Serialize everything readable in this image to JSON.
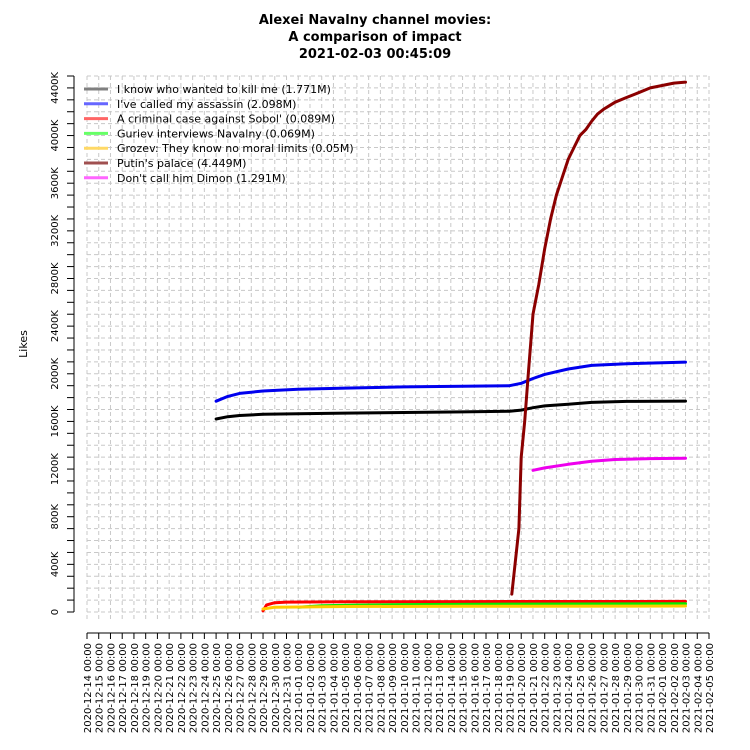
{
  "chart_data": {
    "type": "line",
    "title": [
      "Alexei Navalny channel movies:",
      "A comparison of impact",
      "2021-02-03 00:45:09"
    ],
    "xlabel": "",
    "ylabel": "Likes",
    "xlim": [
      "2020-12-14",
      "2021-02-05"
    ],
    "ylim": [
      0,
      4500000
    ],
    "yticks": [
      0,
      400000,
      800000,
      1200000,
      1600000,
      2000000,
      2400000,
      2800000,
      3200000,
      3600000,
      4000000,
      4400000
    ],
    "ytick_labels": [
      "0",
      "400K",
      "800K",
      "1200K",
      "1600K",
      "2000K",
      "2400K",
      "2800K",
      "3200K",
      "3600K",
      "4000K",
      "4400K"
    ],
    "xtick_labels": [
      "2020-12-14 00:00",
      "2020-12-15 00:00",
      "2020-12-16 00:00",
      "2020-12-17 00:00",
      "2020-12-18 00:00",
      "2020-12-19 00:00",
      "2020-12-20 00:00",
      "2020-12-21 00:00",
      "2020-12-22 00:00",
      "2020-12-23 00:00",
      "2020-12-24 00:00",
      "2020-12-25 00:00",
      "2020-12-26 00:00",
      "2020-12-27 00:00",
      "2020-12-28 00:00",
      "2020-12-29 00:00",
      "2020-12-30 00:00",
      "2020-12-31 00:00",
      "2021-01-01 00:00",
      "2021-01-02 00:00",
      "2021-01-03 00:00",
      "2021-01-04 00:00",
      "2021-01-05 00:00",
      "2021-01-06 00:00",
      "2021-01-07 00:00",
      "2021-01-08 00:00",
      "2021-01-09 00:00",
      "2021-01-10 00:00",
      "2021-01-11 00:00",
      "2021-01-12 00:00",
      "2021-01-13 00:00",
      "2021-01-14 00:00",
      "2021-01-15 00:00",
      "2021-01-16 00:00",
      "2021-01-17 00:00",
      "2021-01-18 00:00",
      "2021-01-19 00:00",
      "2021-01-20 00:00",
      "2021-01-21 00:00",
      "2021-01-22 00:00",
      "2021-01-23 00:00",
      "2021-01-24 00:00",
      "2021-01-25 00:00",
      "2021-01-26 00:00",
      "2021-01-27 00:00",
      "2021-01-28 00:00",
      "2021-01-29 00:00",
      "2021-01-30 00:00",
      "2021-01-31 00:00",
      "2021-02-01 00:00",
      "2021-02-02 00:00",
      "2021-02-03 00:00",
      "2021-02-04 00:00",
      "2021-02-05 00:00"
    ],
    "grid": true,
    "legend_position": "top-left",
    "series": [
      {
        "name": "I know who wanted to kill me (1.771M)",
        "color": "#000000",
        "legend_color": "#808080",
        "x": [
          "2020-12-25",
          "2020-12-26",
          "2020-12-27",
          "2020-12-29",
          "2021-01-01",
          "2021-01-05",
          "2021-01-10",
          "2021-01-15",
          "2021-01-19",
          "2021-01-20",
          "2021-01-21",
          "2021-01-22",
          "2021-01-24",
          "2021-01-26",
          "2021-01-29",
          "2021-02-03"
        ],
        "y": [
          1620000,
          1640000,
          1650000,
          1660000,
          1665000,
          1670000,
          1675000,
          1680000,
          1685000,
          1695000,
          1715000,
          1730000,
          1745000,
          1760000,
          1768000,
          1771000
        ]
      },
      {
        "name": "I've called my assassin (2.098M)",
        "color": "#0000ee",
        "legend_color": "#6666ff",
        "x": [
          "2020-12-25",
          "2020-12-26",
          "2020-12-27",
          "2020-12-29",
          "2021-01-01",
          "2021-01-05",
          "2021-01-10",
          "2021-01-15",
          "2021-01-19",
          "2021-01-20",
          "2021-01-21",
          "2021-01-22",
          "2021-01-24",
          "2021-01-26",
          "2021-01-29",
          "2021-02-03"
        ],
        "y": [
          1770000,
          1810000,
          1835000,
          1855000,
          1870000,
          1880000,
          1890000,
          1895000,
          1900000,
          1920000,
          1960000,
          1995000,
          2040000,
          2070000,
          2085000,
          2098000
        ]
      },
      {
        "name": "A criminal case against Sobol' (0.089M)",
        "color": "#ff0000",
        "legend_color": "#ff6666",
        "x": [
          "2020-12-29",
          "2020-12-29.3",
          "2020-12-30",
          "2020-12-31",
          "2021-01-05",
          "2021-01-15",
          "2021-01-25",
          "2021-02-03"
        ],
        "y": [
          10000,
          60000,
          78000,
          83000,
          86000,
          87000,
          88000,
          89000
        ]
      },
      {
        "name": "Guriev interviews Navalny (0.069M)",
        "color": "#00ee00",
        "legend_color": "#66ff66",
        "x": [
          "2021-01-01",
          "2021-01-03",
          "2021-01-06",
          "2021-01-10",
          "2021-01-20",
          "2021-02-03"
        ],
        "y": [
          40000,
          52000,
          58000,
          62000,
          66000,
          69000
        ]
      },
      {
        "name": "Grozev: They know no moral limits (0.05M)",
        "color": "#ffcc00",
        "legend_color": "#ffd966",
        "x": [
          "2020-12-29",
          "2020-12-30",
          "2021-01-05",
          "2021-01-15",
          "2021-02-03"
        ],
        "y": [
          25000,
          40000,
          46000,
          48000,
          50000
        ]
      },
      {
        "name": "Putin's palace (4.449M)",
        "color": "#8b0000",
        "legend_color": "#a05050",
        "x": [
          "2021-01-19.2",
          "2021-01-19.8",
          "2021-01-20",
          "2021-01-20.3",
          "2021-01-20.6",
          "2021-01-21",
          "2021-01-21.5",
          "2021-01-22",
          "2021-01-22.5",
          "2021-01-23",
          "2021-01-23.5",
          "2021-01-24",
          "2021-01-24.5",
          "2021-01-25",
          "2021-01-25.5",
          "2021-01-26",
          "2021-01-26.5",
          "2021-01-27",
          "2021-01-27.5",
          "2021-01-28",
          "2021-01-29",
          "2021-01-30",
          "2021-01-31",
          "2021-02-01",
          "2021-02-02",
          "2021-02-03"
        ],
        "y": [
          150000,
          700000,
          1300000,
          1600000,
          2000000,
          2500000,
          2750000,
          3050000,
          3300000,
          3500000,
          3650000,
          3800000,
          3900000,
          4000000,
          4050000,
          4120000,
          4180000,
          4220000,
          4250000,
          4280000,
          4320000,
          4360000,
          4400000,
          4420000,
          4440000,
          4449000
        ]
      },
      {
        "name": "Don't call him Dimon (1.291M)",
        "color": "#ee00ee",
        "legend_color": "#ff66ff",
        "x": [
          "2021-01-21",
          "2021-01-22",
          "2021-01-24",
          "2021-01-26",
          "2021-01-28",
          "2021-01-31",
          "2021-02-03"
        ],
        "y": [
          1190000,
          1210000,
          1240000,
          1265000,
          1280000,
          1288000,
          1291000
        ]
      }
    ]
  }
}
